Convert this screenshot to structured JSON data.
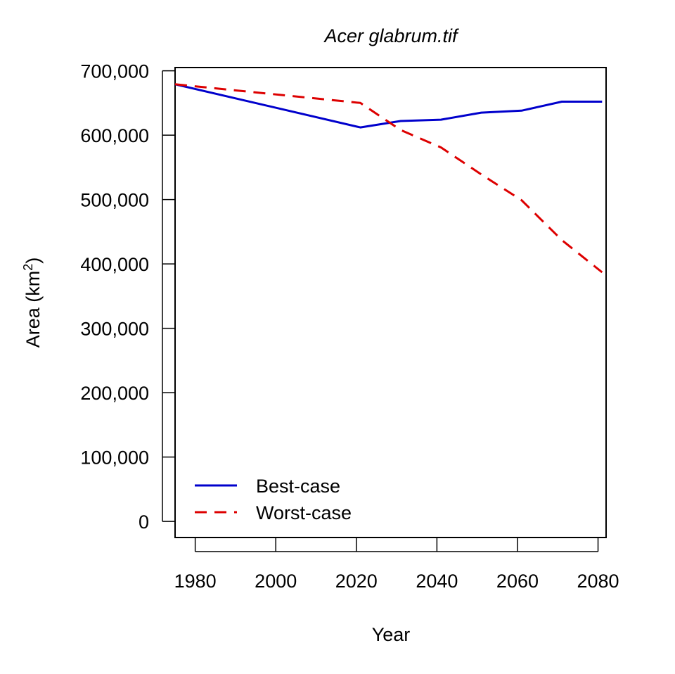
{
  "chart_data": {
    "type": "line",
    "title": "Acer glabrum.tif",
    "xlabel": "Year",
    "ylabel_main": "Area (km",
    "ylabel_sup": "2",
    "ylabel_close": ")",
    "xlim": [
      1975,
      2082
    ],
    "ylim": [
      -25000,
      705000
    ],
    "x_ticks": [
      1980,
      2000,
      2020,
      2040,
      2060,
      2080
    ],
    "x_tick_labels": [
      "1980",
      "2000",
      "2020",
      "2040",
      "2060",
      "2080"
    ],
    "y_ticks": [
      0,
      100000,
      200000,
      300000,
      400000,
      500000,
      600000,
      700000
    ],
    "y_tick_labels": [
      "0",
      "100,000",
      "200,000",
      "300,000",
      "400,000",
      "500,000",
      "600,000",
      "700,000"
    ],
    "grid": false,
    "legend_position": "bottom-left",
    "series": [
      {
        "name": "Best-case",
        "color": "#0000cc",
        "dash": "solid",
        "x": [
          1975,
          2021,
          2031,
          2041,
          2051,
          2061,
          2071,
          2081
        ],
        "y": [
          679000,
          612000,
          622000,
          624000,
          635000,
          638000,
          652000,
          652000
        ]
      },
      {
        "name": "Worst-case",
        "color": "#dd0000",
        "dash": "dashed",
        "x": [
          1975,
          2021,
          2031,
          2041,
          2051,
          2061,
          2071,
          2081
        ],
        "y": [
          679000,
          650000,
          608000,
          581000,
          539000,
          499000,
          437000,
          387000
        ]
      }
    ]
  }
}
